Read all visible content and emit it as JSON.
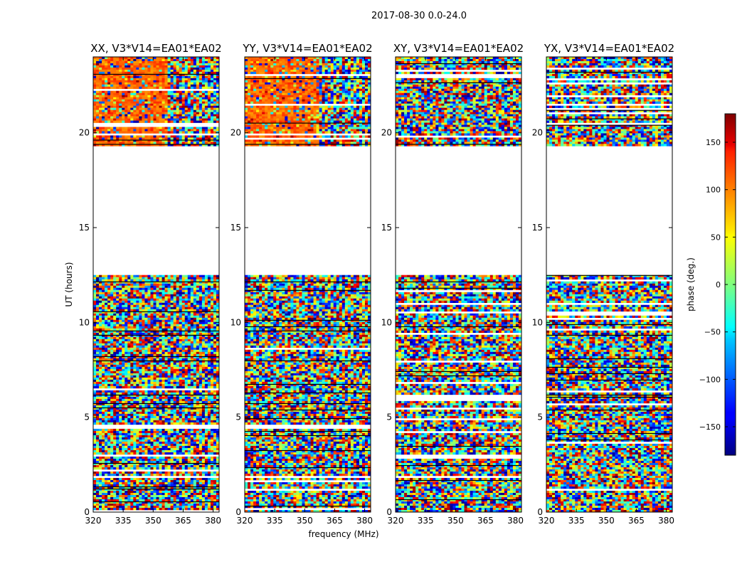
{
  "chart_data": {
    "type": "heatmap",
    "suptitle": "2017-08-30 0.0-24.0",
    "xlabel": "frequency (MHz)",
    "ylabel": "UT (hours)",
    "xlim": [
      320,
      383
    ],
    "ylim": [
      0,
      24
    ],
    "xticks": [
      320,
      335,
      350,
      365,
      380
    ],
    "yticks": [
      0,
      5,
      10,
      15,
      20
    ],
    "panels": [
      {
        "title": "XX, V3*V14=EA01*EA02",
        "polarization": "XX"
      },
      {
        "title": "YY, V3*V14=EA01*EA02",
        "polarization": "YY"
      },
      {
        "title": "XY, V3*V14=EA01*EA02",
        "polarization": "XY"
      },
      {
        "title": "YX, V3*V14=EA01*EA02",
        "polarization": "YX"
      }
    ],
    "data_ranges_hours": [
      [
        0,
        12.5
      ],
      [
        19.3,
        24
      ]
    ],
    "colorbar": {
      "label": "phase (deg.)",
      "range": [
        -180,
        180
      ],
      "ticks": [
        150,
        100,
        50,
        0,
        -50,
        -100,
        -150
      ],
      "tick_labels": [
        "150",
        "100",
        "50",
        "0",
        "−50",
        "−100",
        "−150"
      ],
      "colormap": "jet"
    }
  }
}
